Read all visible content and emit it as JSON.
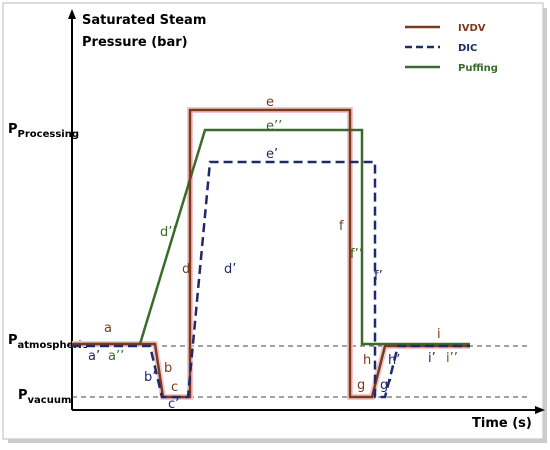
{
  "axes": {
    "y_title": [
      "Saturated Steam",
      "Pressure (bar)"
    ],
    "x_title": "Time (s)"
  },
  "levels": [
    {
      "main": "P",
      "sub": "Processing"
    },
    {
      "main": "P",
      "sub": "atmospheric"
    },
    {
      "main": "P",
      "sub": "vacuum"
    }
  ],
  "legend": [
    "IVDV",
    "DIC",
    "Puffing"
  ],
  "segments": [
    "a",
    "a’",
    "a’’",
    "b",
    "b’",
    "c",
    "c’",
    "d",
    "d’",
    "d’’",
    "e",
    "e’’",
    "e’",
    "f",
    "f’’",
    "f’",
    "g",
    "g’",
    "h",
    "h’",
    "i",
    "i’",
    "i’’"
  ]
}
